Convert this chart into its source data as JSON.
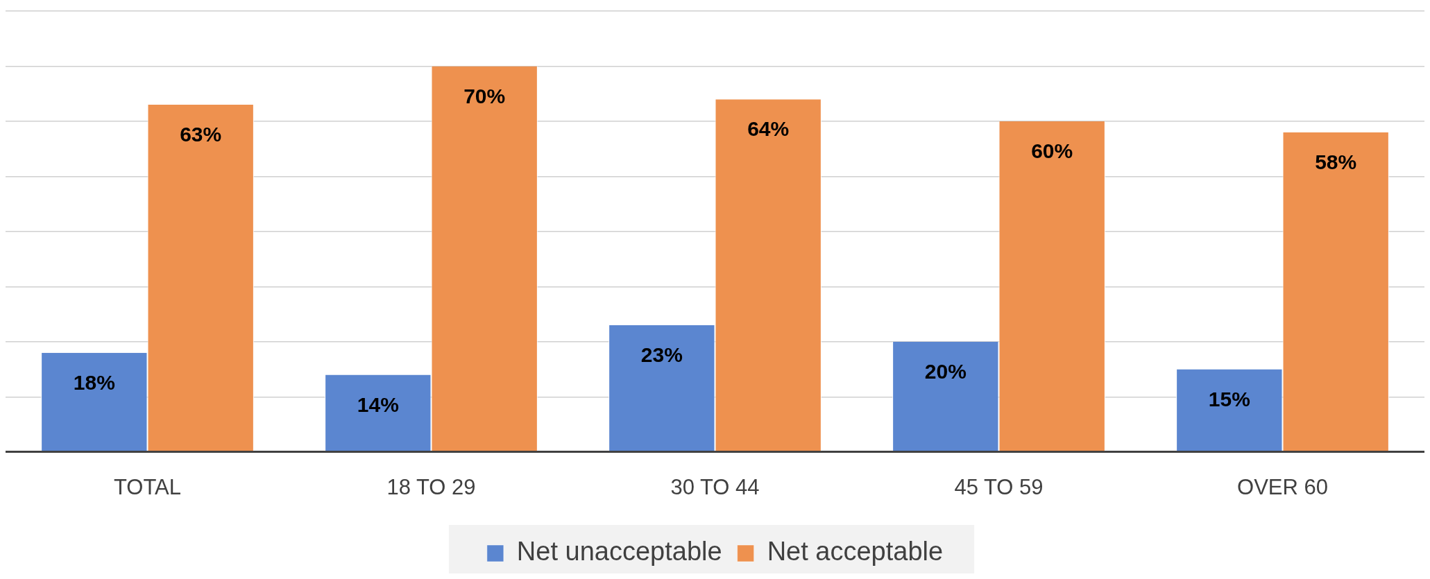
{
  "chart_data": {
    "type": "bar",
    "categories": [
      "TOTAL",
      "18 TO 29",
      "30 TO 44",
      "45 TO 59",
      "OVER 60"
    ],
    "series": [
      {
        "name": "Net unacceptable",
        "color": "#5b86d0",
        "values": [
          18,
          14,
          23,
          20,
          15
        ],
        "value_labels": [
          "18%",
          "14%",
          "23%",
          "20%",
          "15%"
        ]
      },
      {
        "name": "Net acceptable",
        "color": "#ee914f",
        "values": [
          63,
          70,
          64,
          60,
          58
        ],
        "value_labels": [
          "63%",
          "70%",
          "64%",
          "60%",
          "58%"
        ]
      }
    ],
    "ylim": [
      0,
      80
    ],
    "yticks": [
      {
        "value": 0,
        "label": null
      },
      {
        "value": 10,
        "label": null
      },
      {
        "value": 20,
        "label": null
      },
      {
        "value": 30,
        "label": null
      },
      {
        "value": 40,
        "label": null
      },
      {
        "value": 50,
        "label": null
      },
      {
        "value": 60,
        "label": null
      },
      {
        "value": 70,
        "label": null
      },
      {
        "value": 80,
        "label": null
      }
    ],
    "tick_labels": "x",
    "grid": "y",
    "legend": "bottom"
  }
}
